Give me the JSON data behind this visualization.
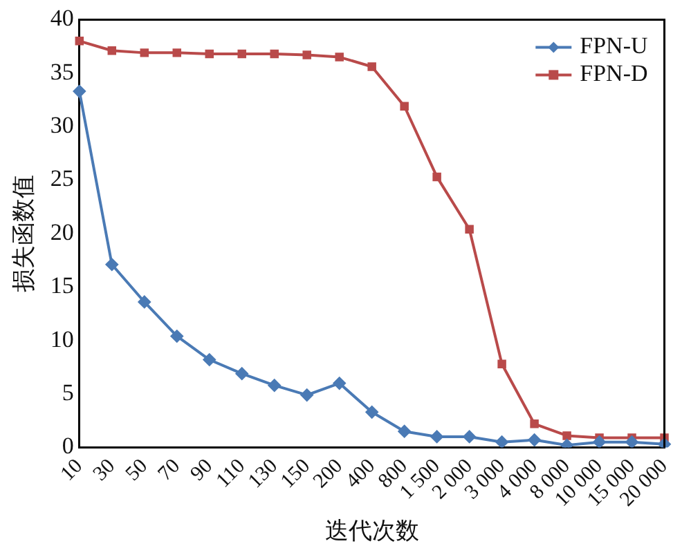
{
  "chart_data": {
    "type": "line",
    "xlabel": "迭代次数",
    "ylabel": "损失函数值",
    "categories": [
      "10",
      "30",
      "50",
      "70",
      "90",
      "110",
      "130",
      "150",
      "200",
      "400",
      "800",
      "1 500",
      "2 000",
      "3 000",
      "4 000",
      "8 000",
      "10 000",
      "15 000",
      "20 000"
    ],
    "series": [
      {
        "name": "FPN-U",
        "color": "#4a7ab5",
        "marker": "diamond",
        "values": [
          33.3,
          17.1,
          13.6,
          10.4,
          8.2,
          6.9,
          5.8,
          4.9,
          6.0,
          3.3,
          1.5,
          1.0,
          1.0,
          0.5,
          0.7,
          0.2,
          0.5,
          0.5,
          0.3
        ]
      },
      {
        "name": "FPN-D",
        "color": "#b94a4a",
        "marker": "square",
        "values": [
          38.0,
          37.1,
          36.9,
          36.9,
          36.8,
          36.8,
          36.8,
          36.7,
          36.5,
          35.6,
          31.9,
          25.3,
          20.4,
          7.8,
          2.2,
          1.1,
          0.9,
          0.9,
          0.9
        ]
      }
    ],
    "ylim": [
      0,
      40
    ],
    "yticks": [
      0,
      5,
      10,
      15,
      20,
      25,
      30,
      35,
      40
    ],
    "grid": false,
    "legend": "top right",
    "line_style": "solid"
  }
}
